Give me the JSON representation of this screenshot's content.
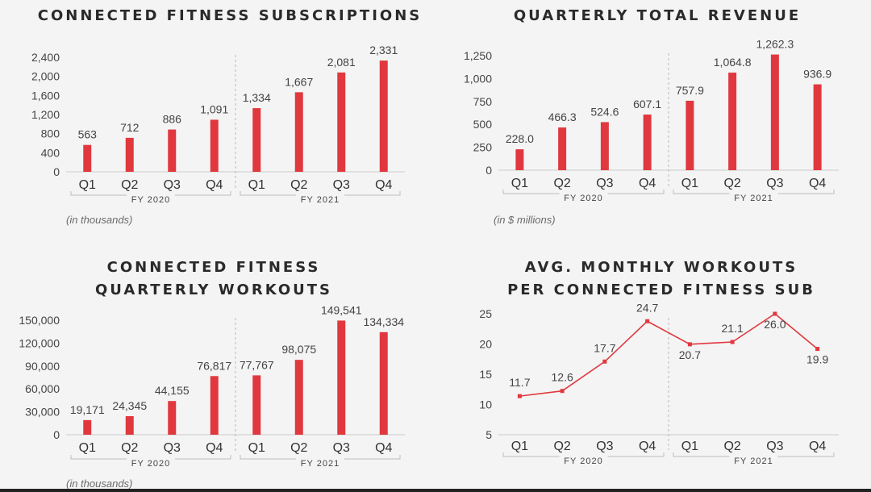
{
  "colors": {
    "bar": "#e0383e",
    "line": "#e0383e",
    "text": "#444444",
    "axis": "#bbbbbb"
  },
  "panels": [
    {
      "title_lines": [
        "CONNECTED FITNESS SUBSCRIPTIONS"
      ],
      "note": "(in thousands)"
    },
    {
      "title_lines": [
        "QUARTERLY TOTAL REVENUE"
      ],
      "note": "(in $ millions)"
    },
    {
      "title_lines": [
        "CONNECTED FITNESS",
        "QUARTERLY WORKOUTS"
      ],
      "note": "(in thousands)"
    },
    {
      "title_lines": [
        "AVG. MONTHLY WORKOUTS",
        "PER CONNECTED FITNESS SUB"
      ],
      "note": ""
    }
  ],
  "chart_data": [
    {
      "type": "bar",
      "title": "CONNECTED FITNESS SUBSCRIPTIONS",
      "categories": [
        "Q1",
        "Q2",
        "Q3",
        "Q4",
        "Q1",
        "Q2",
        "Q3",
        "Q4"
      ],
      "groups": [
        {
          "label": "FY 2020",
          "from": 0,
          "to": 3
        },
        {
          "label": "FY 2021",
          "from": 4,
          "to": 7
        }
      ],
      "values": [
        563,
        712,
        886,
        1091,
        1334,
        1667,
        2081,
        2331
      ],
      "value_labels": [
        "563",
        "712",
        "886",
        "1,091",
        "1,334",
        "1,667",
        "2,081",
        "2,331"
      ],
      "yticks": [
        "0",
        "400",
        "800",
        "1,200",
        "1,600",
        "2,000",
        "2,400"
      ],
      "ylim": [
        0,
        2400
      ],
      "grid": false
    },
    {
      "type": "bar",
      "title": "QUARTERLY TOTAL REVENUE",
      "categories": [
        "Q1",
        "Q2",
        "Q3",
        "Q4",
        "Q1",
        "Q2",
        "Q3",
        "Q4"
      ],
      "groups": [
        {
          "label": "FY 2020",
          "from": 0,
          "to": 3
        },
        {
          "label": "FY 2021",
          "from": 4,
          "to": 7
        }
      ],
      "values": [
        228.0,
        466.3,
        524.6,
        607.1,
        757.9,
        1064.8,
        1262.3,
        936.9
      ],
      "value_labels": [
        "228.0",
        "466.3",
        "524.6",
        "607.1",
        "757.9",
        "1,064.8",
        "1,262.3",
        "936.9"
      ],
      "yticks": [
        "0",
        "250",
        "500",
        "750",
        "1,000",
        "1,250"
      ],
      "ylim": [
        0,
        1250
      ],
      "grid": false
    },
    {
      "type": "bar",
      "title": "CONNECTED FITNESS QUARTERLY WORKOUTS",
      "categories": [
        "Q1",
        "Q2",
        "Q3",
        "Q4",
        "Q1",
        "Q2",
        "Q3",
        "Q4"
      ],
      "groups": [
        {
          "label": "FY 2020",
          "from": 0,
          "to": 3
        },
        {
          "label": "FY 2021",
          "from": 4,
          "to": 7
        }
      ],
      "values": [
        19171,
        24345,
        44155,
        76817,
        77767,
        98075,
        149541,
        134334
      ],
      "value_labels": [
        "19,171",
        "24,345",
        "44,155",
        "76,817",
        "77,767",
        "98,075",
        "149,541",
        "134,334"
      ],
      "yticks": [
        "0",
        "30,000",
        "60,000",
        "90,000",
        "120,000",
        "150,000"
      ],
      "ylim": [
        0,
        150000
      ],
      "grid": false
    },
    {
      "type": "line",
      "title": "AVG. MONTHLY WORKOUTS PER CONNECTED FITNESS SUB",
      "categories": [
        "Q1",
        "Q2",
        "Q3",
        "Q4",
        "Q1",
        "Q2",
        "Q3",
        "Q4"
      ],
      "groups": [
        {
          "label": "FY 2020",
          "from": 0,
          "to": 3
        },
        {
          "label": "FY 2021",
          "from": 4,
          "to": 7
        }
      ],
      "values": [
        11.7,
        12.6,
        17.7,
        24.7,
        20.7,
        21.1,
        26.0,
        19.9
      ],
      "value_labels": [
        "11.7",
        "12.6",
        "17.7",
        "24.7",
        "20.7",
        "21.1",
        "26.0",
        "19.9"
      ],
      "yticks": [
        "5",
        "10",
        "15",
        "20",
        "25"
      ],
      "ylim": [
        5,
        26
      ],
      "grid": false
    }
  ]
}
